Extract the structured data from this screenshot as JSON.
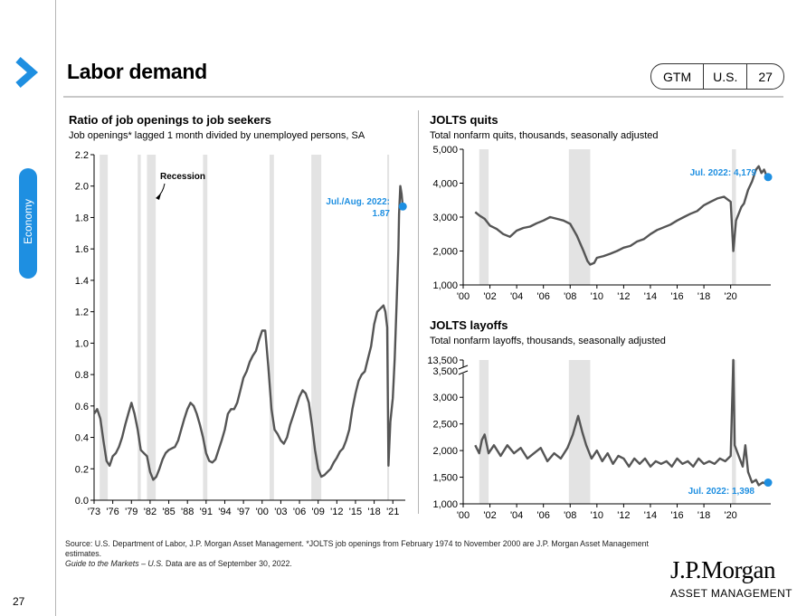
{
  "header": {
    "title": "Labor demand",
    "tags": [
      "GTM",
      "U.S.",
      "27"
    ],
    "side_tab": "Economy"
  },
  "footer": {
    "source_line": "Source: U.S. Department of Labor, J.P. Morgan Asset Management. *JOLTS job openings from February 1974 to November 2000 are J.P. Morgan Asset Management estimates.",
    "guide_title": "Guide to the Markets – U.S.",
    "guide_suffix": " Data are as of September 30, 2022.",
    "logo_main": "J.P.Morgan",
    "logo_sub": "ASSET MANAGEMENT",
    "page_number": "27"
  },
  "colors": {
    "accent": "#1e8fe1",
    "series": "#555555",
    "recession": "#e3e3e3"
  },
  "icons": {
    "section_marker": "chevron-right-icon",
    "axis_break": "axis-break-icon"
  },
  "chart_data": [
    {
      "id": "ratio",
      "type": "line",
      "title": "Ratio of job openings to job seekers",
      "subtitle": "Job openings* lagged 1 month divided by unemployed persons, SA",
      "xlabels": [
        "'73",
        "'76",
        "'79",
        "'82",
        "'85",
        "'88",
        "'91",
        "'94",
        "'97",
        "'00",
        "'03",
        "'06",
        "'09",
        "'12",
        "'15",
        "'18",
        "'21"
      ],
      "xlim": [
        1973,
        2023
      ],
      "ylim": [
        0,
        2.2
      ],
      "yticks": [
        "0.0",
        "0.2",
        "0.4",
        "0.6",
        "0.8",
        "1.0",
        "1.2",
        "1.4",
        "1.6",
        "1.8",
        "2.0",
        "2.2"
      ],
      "recessions": [
        [
          1973.9,
          1975.2
        ],
        [
          1980.0,
          1980.5
        ],
        [
          1981.5,
          1982.9
        ],
        [
          1990.5,
          1991.2
        ],
        [
          2001.2,
          2001.9
        ],
        [
          2007.9,
          2009.5
        ],
        [
          2020.1,
          2020.4
        ]
      ],
      "recession_label": "Recession",
      "series": [
        {
          "values": [
            [
              1973.0,
              0.55
            ],
            [
              1973.5,
              0.58
            ],
            [
              1974.0,
              0.52
            ],
            [
              1974.5,
              0.38
            ],
            [
              1975.0,
              0.25
            ],
            [
              1975.5,
              0.22
            ],
            [
              1976.0,
              0.28
            ],
            [
              1976.5,
              0.3
            ],
            [
              1977.0,
              0.34
            ],
            [
              1977.5,
              0.4
            ],
            [
              1978.0,
              0.48
            ],
            [
              1978.5,
              0.55
            ],
            [
              1979.0,
              0.62
            ],
            [
              1979.5,
              0.55
            ],
            [
              1980.0,
              0.45
            ],
            [
              1980.5,
              0.32
            ],
            [
              1981.0,
              0.3
            ],
            [
              1981.5,
              0.28
            ],
            [
              1982.0,
              0.18
            ],
            [
              1982.5,
              0.13
            ],
            [
              1983.0,
              0.15
            ],
            [
              1983.5,
              0.2
            ],
            [
              1984.0,
              0.26
            ],
            [
              1984.5,
              0.3
            ],
            [
              1985.0,
              0.32
            ],
            [
              1985.5,
              0.33
            ],
            [
              1986.0,
              0.34
            ],
            [
              1986.5,
              0.38
            ],
            [
              1987.0,
              0.45
            ],
            [
              1987.5,
              0.52
            ],
            [
              1988.0,
              0.58
            ],
            [
              1988.5,
              0.62
            ],
            [
              1989.0,
              0.6
            ],
            [
              1989.5,
              0.55
            ],
            [
              1990.0,
              0.48
            ],
            [
              1990.5,
              0.4
            ],
            [
              1991.0,
              0.3
            ],
            [
              1991.5,
              0.25
            ],
            [
              1992.0,
              0.24
            ],
            [
              1992.5,
              0.26
            ],
            [
              1993.0,
              0.32
            ],
            [
              1993.5,
              0.38
            ],
            [
              1994.0,
              0.45
            ],
            [
              1994.5,
              0.55
            ],
            [
              1995.0,
              0.58
            ],
            [
              1995.5,
              0.58
            ],
            [
              1996.0,
              0.62
            ],
            [
              1996.5,
              0.7
            ],
            [
              1997.0,
              0.78
            ],
            [
              1997.5,
              0.82
            ],
            [
              1998.0,
              0.88
            ],
            [
              1998.5,
              0.92
            ],
            [
              1999.0,
              0.95
            ],
            [
              1999.5,
              1.02
            ],
            [
              2000.0,
              1.08
            ],
            [
              2000.5,
              1.08
            ],
            [
              2001.0,
              0.85
            ],
            [
              2001.5,
              0.58
            ],
            [
              2002.0,
              0.45
            ],
            [
              2002.5,
              0.42
            ],
            [
              2003.0,
              0.38
            ],
            [
              2003.5,
              0.36
            ],
            [
              2004.0,
              0.4
            ],
            [
              2004.5,
              0.48
            ],
            [
              2005.0,
              0.54
            ],
            [
              2005.5,
              0.6
            ],
            [
              2006.0,
              0.66
            ],
            [
              2006.5,
              0.7
            ],
            [
              2007.0,
              0.68
            ],
            [
              2007.5,
              0.62
            ],
            [
              2008.0,
              0.48
            ],
            [
              2008.5,
              0.32
            ],
            [
              2009.0,
              0.2
            ],
            [
              2009.5,
              0.15
            ],
            [
              2010.0,
              0.16
            ],
            [
              2010.5,
              0.18
            ],
            [
              2011.0,
              0.2
            ],
            [
              2011.5,
              0.24
            ],
            [
              2012.0,
              0.27
            ],
            [
              2012.5,
              0.31
            ],
            [
              2013.0,
              0.33
            ],
            [
              2013.5,
              0.38
            ],
            [
              2014.0,
              0.45
            ],
            [
              2014.5,
              0.58
            ],
            [
              2015.0,
              0.68
            ],
            [
              2015.5,
              0.76
            ],
            [
              2016.0,
              0.8
            ],
            [
              2016.5,
              0.82
            ],
            [
              2017.0,
              0.9
            ],
            [
              2017.5,
              0.98
            ],
            [
              2018.0,
              1.12
            ],
            [
              2018.5,
              1.2
            ],
            [
              2019.0,
              1.22
            ],
            [
              2019.5,
              1.24
            ],
            [
              2019.8,
              1.2
            ],
            [
              2020.1,
              1.1
            ],
            [
              2020.3,
              0.22
            ],
            [
              2020.6,
              0.5
            ],
            [
              2021.0,
              0.65
            ],
            [
              2021.3,
              0.9
            ],
            [
              2021.6,
              1.25
            ],
            [
              2021.9,
              1.6
            ],
            [
              2022.0,
              1.82
            ],
            [
              2022.2,
              2.0
            ],
            [
              2022.4,
              1.95
            ],
            [
              2022.6,
              1.87
            ]
          ]
        }
      ],
      "annotation": {
        "line1": "Jul./Aug. 2022:",
        "line2": "1.87",
        "x": 2022.6,
        "y": 1.87
      }
    },
    {
      "id": "quits",
      "type": "line",
      "title": "JOLTS quits",
      "subtitle": "Total nonfarm quits, thousands, seasonally adjusted",
      "xlabels": [
        "'00",
        "'02",
        "'04",
        "'06",
        "'08",
        "'10",
        "'12",
        "'14",
        "'16",
        "'18",
        "'20"
      ],
      "xlim": [
        2000,
        2023
      ],
      "ylim": [
        1000,
        5000
      ],
      "yticks": [
        "1,000",
        "2,000",
        "3,000",
        "4,000",
        "5,000"
      ],
      "recessions": [
        [
          2001.2,
          2001.9
        ],
        [
          2007.9,
          2009.5
        ],
        [
          2020.1,
          2020.4
        ]
      ],
      "series": [
        {
          "values": [
            [
              2000.9,
              3150
            ],
            [
              2001.2,
              3050
            ],
            [
              2001.6,
              2950
            ],
            [
              2002.0,
              2750
            ],
            [
              2002.5,
              2650
            ],
            [
              2003.0,
              2500
            ],
            [
              2003.5,
              2420
            ],
            [
              2004.0,
              2600
            ],
            [
              2004.5,
              2680
            ],
            [
              2005.0,
              2720
            ],
            [
              2005.5,
              2820
            ],
            [
              2006.0,
              2900
            ],
            [
              2006.5,
              3000
            ],
            [
              2007.0,
              2950
            ],
            [
              2007.5,
              2900
            ],
            [
              2008.0,
              2800
            ],
            [
              2008.5,
              2450
            ],
            [
              2009.0,
              2000
            ],
            [
              2009.3,
              1700
            ],
            [
              2009.5,
              1600
            ],
            [
              2009.8,
              1650
            ],
            [
              2010.0,
              1800
            ],
            [
              2010.5,
              1850
            ],
            [
              2011.0,
              1920
            ],
            [
              2011.5,
              2000
            ],
            [
              2012.0,
              2100
            ],
            [
              2012.5,
              2150
            ],
            [
              2013.0,
              2280
            ],
            [
              2013.5,
              2350
            ],
            [
              2014.0,
              2500
            ],
            [
              2014.5,
              2620
            ],
            [
              2015.0,
              2700
            ],
            [
              2015.5,
              2780
            ],
            [
              2016.0,
              2900
            ],
            [
              2016.5,
              3000
            ],
            [
              2017.0,
              3100
            ],
            [
              2017.5,
              3180
            ],
            [
              2018.0,
              3350
            ],
            [
              2018.5,
              3450
            ],
            [
              2019.0,
              3550
            ],
            [
              2019.5,
              3600
            ],
            [
              2020.0,
              3450
            ],
            [
              2020.2,
              2000
            ],
            [
              2020.4,
              2900
            ],
            [
              2020.8,
              3300
            ],
            [
              2021.0,
              3400
            ],
            [
              2021.3,
              3800
            ],
            [
              2021.6,
              4050
            ],
            [
              2021.9,
              4400
            ],
            [
              2022.1,
              4500
            ],
            [
              2022.3,
              4300
            ],
            [
              2022.5,
              4400
            ],
            [
              2022.7,
              4200
            ],
            [
              2022.8,
              4179
            ]
          ]
        }
      ],
      "annotation": {
        "line1": "Jul. 2022: 4,179",
        "x": 2022.8,
        "y": 4179
      }
    },
    {
      "id": "layoffs",
      "type": "line",
      "title": "JOLTS layoffs",
      "subtitle": "Total nonfarm layoffs, thousands, seasonally adjusted",
      "xlabels": [
        "'00",
        "'02",
        "'04",
        "'06",
        "'08",
        "'10",
        "'12",
        "'14",
        "'16",
        "'18",
        "'20"
      ],
      "xlim": [
        2000,
        2023
      ],
      "ylim": [
        1000,
        3700
      ],
      "axis_break": true,
      "yticks": [
        "1,000",
        "1,500",
        "2,000",
        "2,500",
        "3,000",
        "3,500",
        "13,500"
      ],
      "recessions": [
        [
          2001.2,
          2001.9
        ],
        [
          2007.9,
          2009.5
        ],
        [
          2020.1,
          2020.4
        ]
      ],
      "series": [
        {
          "values": [
            [
              2000.9,
              2100
            ],
            [
              2001.2,
              1950
            ],
            [
              2001.4,
              2200
            ],
            [
              2001.6,
              2300
            ],
            [
              2001.9,
              1950
            ],
            [
              2002.3,
              2100
            ],
            [
              2002.8,
              1900
            ],
            [
              2003.3,
              2100
            ],
            [
              2003.8,
              1950
            ],
            [
              2004.3,
              2050
            ],
            [
              2004.8,
              1850
            ],
            [
              2005.3,
              1950
            ],
            [
              2005.8,
              2050
            ],
            [
              2006.3,
              1800
            ],
            [
              2006.8,
              1950
            ],
            [
              2007.3,
              1850
            ],
            [
              2007.8,
              2050
            ],
            [
              2008.2,
              2300
            ],
            [
              2008.6,
              2650
            ],
            [
              2008.9,
              2350
            ],
            [
              2009.2,
              2100
            ],
            [
              2009.6,
              1850
            ],
            [
              2010.0,
              2000
            ],
            [
              2010.4,
              1800
            ],
            [
              2010.8,
              1950
            ],
            [
              2011.2,
              1750
            ],
            [
              2011.6,
              1900
            ],
            [
              2012.0,
              1850
            ],
            [
              2012.4,
              1700
            ],
            [
              2012.8,
              1850
            ],
            [
              2013.2,
              1750
            ],
            [
              2013.6,
              1850
            ],
            [
              2014.0,
              1700
            ],
            [
              2014.4,
              1800
            ],
            [
              2014.8,
              1750
            ],
            [
              2015.2,
              1800
            ],
            [
              2015.6,
              1700
            ],
            [
              2016.0,
              1850
            ],
            [
              2016.4,
              1750
            ],
            [
              2016.8,
              1800
            ],
            [
              2017.2,
              1700
            ],
            [
              2017.6,
              1850
            ],
            [
              2018.0,
              1750
            ],
            [
              2018.4,
              1800
            ],
            [
              2018.8,
              1750
            ],
            [
              2019.2,
              1850
            ],
            [
              2019.6,
              1800
            ],
            [
              2020.0,
              1900
            ],
            [
              2020.2,
              13500
            ],
            [
              2020.3,
              2100
            ],
            [
              2020.6,
              1900
            ],
            [
              2020.9,
              1700
            ],
            [
              2021.1,
              2100
            ],
            [
              2021.3,
              1600
            ],
            [
              2021.6,
              1400
            ],
            [
              2021.9,
              1450
            ],
            [
              2022.1,
              1350
            ],
            [
              2022.4,
              1400
            ],
            [
              2022.6,
              1380
            ],
            [
              2022.8,
              1398
            ]
          ]
        }
      ],
      "annotation": {
        "line1": "Jul. 2022: 1,398",
        "x": 2022.8,
        "y": 1398
      }
    }
  ]
}
